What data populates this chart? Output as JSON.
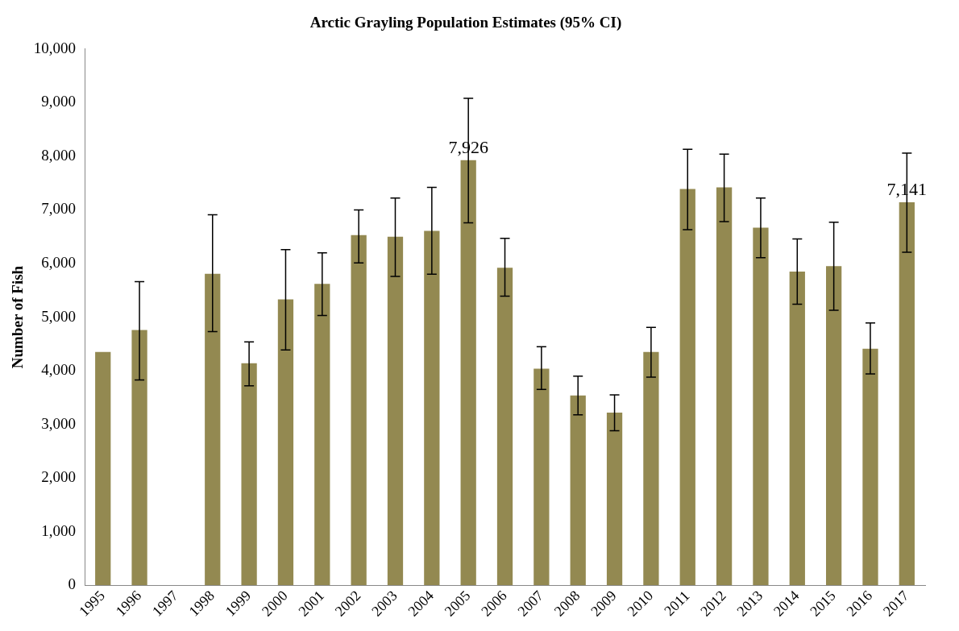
{
  "chart_data": {
    "type": "bar",
    "title": "Arctic Grayling Population Estimates (95% CI)",
    "ylabel": "Number of Fish",
    "categories": [
      "1995",
      "1996",
      "1997",
      "1998",
      "1999",
      "2000",
      "2001",
      "2002",
      "2003",
      "2004",
      "2005",
      "2006",
      "2007",
      "2008",
      "2009",
      "2010",
      "2011",
      "2012",
      "2013",
      "2014",
      "2015",
      "2016",
      "2017"
    ],
    "values": [
      4350,
      4760,
      null,
      5810,
      4140,
      5330,
      5620,
      6530,
      6500,
      6610,
      7926,
      5920,
      4040,
      3540,
      3220,
      4350,
      7390,
      7420,
      6670,
      5850,
      5950,
      4410,
      7141
    ],
    "errors": [
      null,
      [
        3830,
        5660
      ],
      null,
      [
        4730,
        6910
      ],
      [
        3720,
        4540
      ],
      [
        4390,
        6260
      ],
      [
        5030,
        6200
      ],
      [
        6010,
        7000
      ],
      [
        5760,
        7220
      ],
      [
        5800,
        7420
      ],
      [
        6760,
        9080
      ],
      [
        5390,
        6470
      ],
      [
        3650,
        4450
      ],
      [
        3180,
        3900
      ],
      [
        2880,
        3550
      ],
      [
        3880,
        4810
      ],
      [
        6630,
        8130
      ],
      [
        6780,
        8040
      ],
      [
        6110,
        7220
      ],
      [
        5240,
        6460
      ],
      [
        5130,
        6770
      ],
      [
        3940,
        4890
      ],
      [
        6210,
        8060
      ]
    ],
    "value_labels": [
      null,
      null,
      null,
      null,
      null,
      null,
      null,
      null,
      null,
      null,
      "7,926",
      null,
      null,
      null,
      null,
      null,
      null,
      null,
      null,
      null,
      null,
      null,
      "7,141"
    ],
    "color": "#938951",
    "ylim": [
      0,
      10000
    ],
    "yticks": [
      {
        "value": 0,
        "label": "0"
      },
      {
        "value": 1000,
        "label": "1,000"
      },
      {
        "value": 2000,
        "label": "2,000"
      },
      {
        "value": 3000,
        "label": "3,000"
      },
      {
        "value": 4000,
        "label": "4,000"
      },
      {
        "value": 5000,
        "label": "5,000"
      },
      {
        "value": 6000,
        "label": "6,000"
      },
      {
        "value": 7000,
        "label": "7,000"
      },
      {
        "value": 8000,
        "label": "8,000"
      },
      {
        "value": 9000,
        "label": "9,000"
      },
      {
        "value": 10000,
        "label": "10,000"
      }
    ],
    "grid": false,
    "legend": false
  }
}
